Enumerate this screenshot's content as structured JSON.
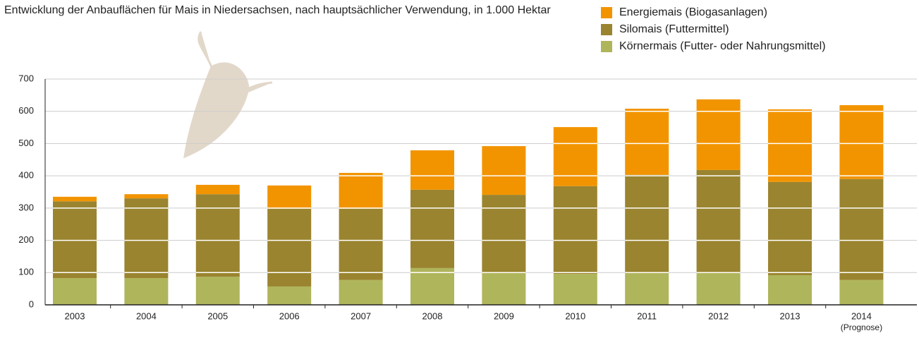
{
  "chart_data": {
    "type": "stacked-bar",
    "title": "Entwicklung der Anbauflächen für Mais in Niedersachsen, nach hauptsächlicher Verwendung, in 1.000 Hektar",
    "categories": [
      "2003",
      "2004",
      "2005",
      "2006",
      "2007",
      "2008",
      "2009",
      "2010",
      "2011",
      "2012",
      "2013",
      "2014"
    ],
    "annotations": [
      "(Prognose)"
    ],
    "series": [
      {
        "name": "Körnermais (Futter- oder Nahrungsmittel)",
        "color": "#afb55b",
        "values": [
          83,
          83,
          87,
          57,
          77,
          114,
          100,
          96,
          100,
          100,
          92,
          77
        ]
      },
      {
        "name": "Silomais (Futtermittel)",
        "color": "#9a842f",
        "values": [
          238,
          247,
          256,
          241,
          221,
          243,
          241,
          272,
          303,
          318,
          289,
          313
        ]
      },
      {
        "name": "Energiemais (Biogasanlagen)",
        "color": "#f29400",
        "values": [
          14,
          13,
          29,
          72,
          111,
          122,
          151,
          183,
          205,
          219,
          225,
          229
        ]
      }
    ],
    "ylim": [
      0,
      700
    ],
    "yticks": [
      0,
      100,
      200,
      300,
      400,
      500,
      600,
      700
    ],
    "grid": true
  }
}
